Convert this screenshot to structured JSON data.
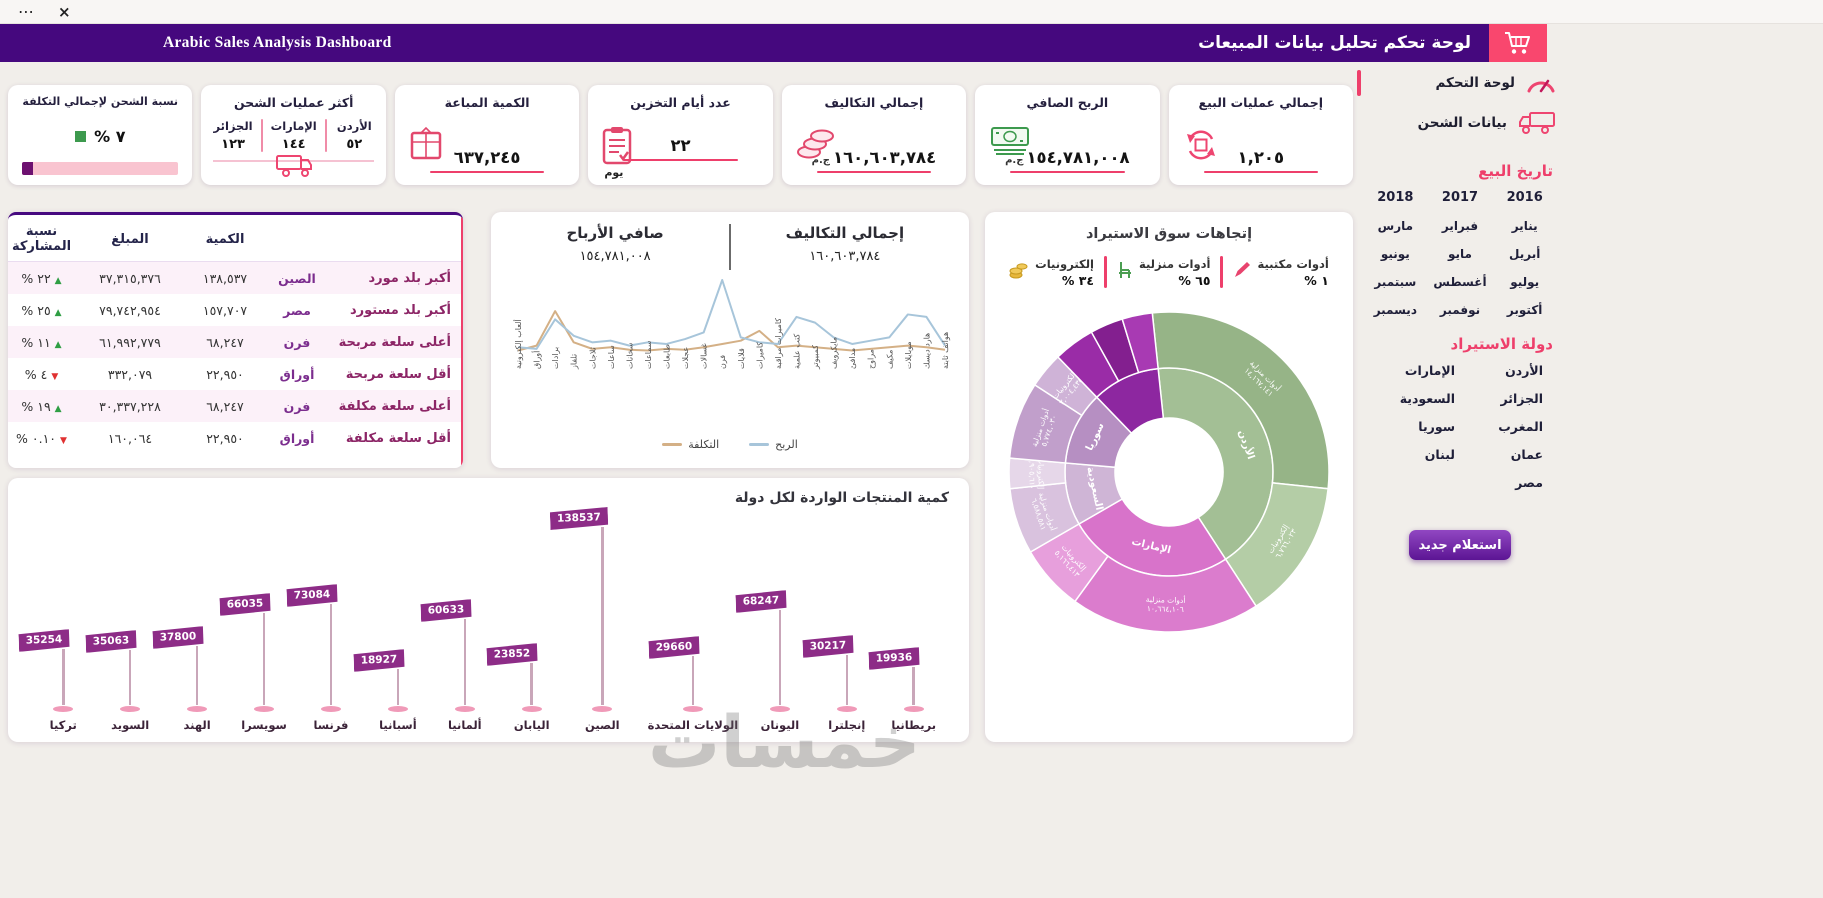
{
  "window": {
    "more_icon": "⋯",
    "close_icon": "×"
  },
  "header": {
    "title_ar": "لوحة تحكم تحليل بيانات المبيعات",
    "title_en": "Arabic Sales Analysis  Dashboard"
  },
  "sidebar": {
    "nav": [
      {
        "label": "لوحة التحكم"
      },
      {
        "label": "بيانات الشحن"
      }
    ],
    "sale_date_title": "تاريخ البيع",
    "years": [
      "2016",
      "2017",
      "2018"
    ],
    "months": [
      "يناير",
      "فبراير",
      "مارس",
      "أبريل",
      "مايو",
      "يونيو",
      "يوليو",
      "أغسطس",
      "سبتمبر",
      "أكتوبر",
      "نوفمبر",
      "ديسمبر"
    ],
    "import_country_title": "دولة الاستيراد",
    "countries": [
      "الأردن",
      "الإمارات",
      "الجزائر",
      "السعودية",
      "المغرب",
      "سوريا",
      "عمان",
      "لبنان",
      "مصر"
    ],
    "new_query_button": "استعلام جديد"
  },
  "kpis": {
    "total_sales": {
      "title": "إجمالي عمليات البيع",
      "value": "١,٢٠٥"
    },
    "net_profit": {
      "title": "الربح الصافي",
      "value": "١٥٤,٧٨١,٠٠٨",
      "currency": "ج.م"
    },
    "total_costs": {
      "title": "إجمالي التكاليف",
      "value": "١٦٠,٦٠٣,٧٨٤",
      "currency": "ج.م"
    },
    "storage_days": {
      "title": "عدد أيام التخزين",
      "value": "٢٢",
      "unit": "يوم"
    },
    "quantity_sold": {
      "title": "الكمية المباعة",
      "value": "٦٣٧,٢٤٥"
    },
    "top_shipping": {
      "title": "أكثر عمليات الشحن",
      "columns": [
        {
          "country": "الأردن",
          "value": "٥٢"
        },
        {
          "country": "الإمارات",
          "value": "١٤٤"
        },
        {
          "country": "الجزائر",
          "value": "١٢٣"
        }
      ]
    },
    "shipping_ratio": {
      "title": "نسبة الشحن لإجمالي التكلفة",
      "value": "٧ %",
      "percent": 7
    }
  },
  "summary_table": {
    "headers": {
      "qty": "الكمية",
      "amount": "المبلغ",
      "share": "نسبة المشاركة"
    },
    "rows": [
      {
        "label": "أكبر بلد مورد",
        "item": "الصين",
        "qty": "١٣٨,٥٣٧",
        "amount": "٣٧,٣١٥,٣٧٦",
        "share": "٢٢ %",
        "trend": "up"
      },
      {
        "label": "أكبر بلد مستورد",
        "item": "مصر",
        "qty": "١٥٧,٧٠٧",
        "amount": "٧٩,٧٤٢,٩٥٤",
        "share": "٢٥ %",
        "trend": "up"
      },
      {
        "label": "أعلى سلعة مربحة",
        "item": "فرن",
        "qty": "٦٨,٢٤٧",
        "amount": "٦١,٩٩٢,٧٧٩",
        "share": "١١ %",
        "trend": "up"
      },
      {
        "label": "أقل سلعة مربحة",
        "item": "أوراق",
        "qty": "٢٢,٩٥٠",
        "amount": "٣٣٢,٠٧٩",
        "share": "٤ %",
        "trend": "down"
      },
      {
        "label": "أعلى سلعة مكلفة",
        "item": "فرن",
        "qty": "٦٨,٢٤٧",
        "amount": "٣٠,٣٣٧,٢٢٨",
        "share": "١٩ %",
        "trend": "up"
      },
      {
        "label": "أقل سلعة مكلفة",
        "item": "أوراق",
        "qty": "٢٢,٩٥٠",
        "amount": "١٦٠,٠٦٤",
        "share": "٠.١٠ %",
        "trend": "down"
      }
    ]
  },
  "chart_data": [
    {
      "type": "line",
      "title_right": "إجمالي التكاليف",
      "value_right": "١٦٠,٦٠٣,٧٨٤",
      "title_left": "صافي الأرباح",
      "value_left": "١٥٤,٧٨١,٠٠٨",
      "categories": [
        "ألعاب إلكترونية",
        "أوراق",
        "برادات",
        "تلفاز",
        "ثلاجات",
        "ساعات",
        "سخانات",
        "سماعات",
        "طابعات",
        "عجلات",
        "غسالات",
        "فرن",
        "قلايات",
        "كاميرات",
        "كاميرات مراقبة",
        "كتب علمية",
        "كمبيوتر",
        "مايكرويف",
        "مدافئ",
        "مراوح",
        "مكيف",
        "موبايلات",
        "هارد ديسك",
        "هواتف ثابتة"
      ],
      "series": [
        {
          "name": "التكلفة",
          "color": "#d4b086",
          "values": [
            14,
            20,
            62,
            24,
            16,
            18,
            15,
            14,
            16,
            15,
            18,
            22,
            26,
            38,
            18,
            20,
            18,
            16,
            14,
            16,
            18,
            20,
            18,
            15
          ]
        },
        {
          "name": "الربح",
          "color": "#a7c5da",
          "values": [
            18,
            16,
            52,
            32,
            24,
            26,
            20,
            24,
            22,
            28,
            36,
            100,
            30,
            24,
            22,
            55,
            48,
            30,
            22,
            26,
            30,
            58,
            55,
            20
          ]
        }
      ],
      "ylim": [
        0,
        100
      ],
      "legend_position": "bottom",
      "grid": false
    },
    {
      "type": "bar",
      "bar_style": "flag",
      "title": "كمية المنتجات الواردة لكل دولة",
      "categories": [
        "تركيا",
        "السويد",
        "الهند",
        "سويسرا",
        "فرنسا",
        "أسبانيا",
        "ألمانيا",
        "اليابان",
        "الصين",
        "الولايات المتحدة",
        "اليونان",
        "إنجلترا",
        "بريطانيا"
      ],
      "values": [
        35254,
        35063,
        37800,
        66035,
        73084,
        18927,
        60633,
        23852,
        138537,
        29660,
        68247,
        30217,
        19936
      ],
      "bar_color": "#8d2c87"
    },
    {
      "type": "pie",
      "subtype": "sunburst",
      "title": "إتجاهات سوق الاستيراد",
      "legend": [
        {
          "label": "أدوات مكتبية",
          "pct": "١ %",
          "icon": "pencil-icon"
        },
        {
          "label": "أدوات منزلية",
          "pct": "٦٥ %",
          "icon": "chair-icon"
        },
        {
          "label": "إلكترونيات",
          "pct": "٣٤ %",
          "icon": "gold-icon"
        }
      ],
      "inner_ring": [
        {
          "label": "الأردن",
          "start": -6,
          "end": 147,
          "color": "#a3bf95"
        },
        {
          "label": "الإمارات",
          "start": 147,
          "end": 240,
          "color": "#d873ca"
        },
        {
          "label": "السعودية",
          "start": 240,
          "end": 275,
          "color": "#cfb5d6"
        },
        {
          "label": "سوريا",
          "start": 275,
          "end": 316,
          "color": "#b68fc2"
        },
        {
          "label": "",
          "start": 316,
          "end": 354,
          "color": "#8d27a0"
        }
      ],
      "outer_ring": [
        {
          "label": "أدوات منزلية",
          "value": "١٤,١٦٧,١٤١",
          "start": -6,
          "end": 96,
          "color": "#96b487"
        },
        {
          "label": "إلكترونيات",
          "value": "٦,٧٦٦,٠٢٣",
          "start": 96,
          "end": 147,
          "color": "#b4cda6"
        },
        {
          "label": "أدوات منزلية",
          "value": "١٠,٦٦٤,١٠٦",
          "start": 147,
          "end": 216,
          "color": "#db7ccd"
        },
        {
          "label": "إلكترونيات",
          "value": "٥,١٦٦,٤١٣",
          "start": 216,
          "end": 240,
          "color": "#e79fdc"
        },
        {
          "label": "أدوات منزلية",
          "value": "٦,٥٨٨,٥٨١",
          "start": 240,
          "end": 264,
          "color": "#d9c2de"
        },
        {
          "label": "إلكترونيات",
          "value": "٢,٩٠٥,٦١٠",
          "start": 264,
          "end": 275,
          "color": "#e6d7e9"
        },
        {
          "label": "أدوات منزلية",
          "value": "٥,٧٧٤,٠٣٠",
          "start": 275,
          "end": 303,
          "color": "#c19fcb"
        },
        {
          "label": "إلكترونيات",
          "value": "٣,٠٠٤,٤٣٥",
          "start": 303,
          "end": 316,
          "color": "#cfb3d7"
        },
        {
          "label": "",
          "value": "",
          "start": 316,
          "end": 331,
          "color": "#9a2ca7"
        },
        {
          "label": "",
          "value": "",
          "start": 331,
          "end": 343,
          "color": "#831f8f"
        },
        {
          "label": "",
          "value": "",
          "start": 343,
          "end": 354,
          "color": "#a83ab3"
        }
      ]
    }
  ],
  "watermark": "خمسات"
}
